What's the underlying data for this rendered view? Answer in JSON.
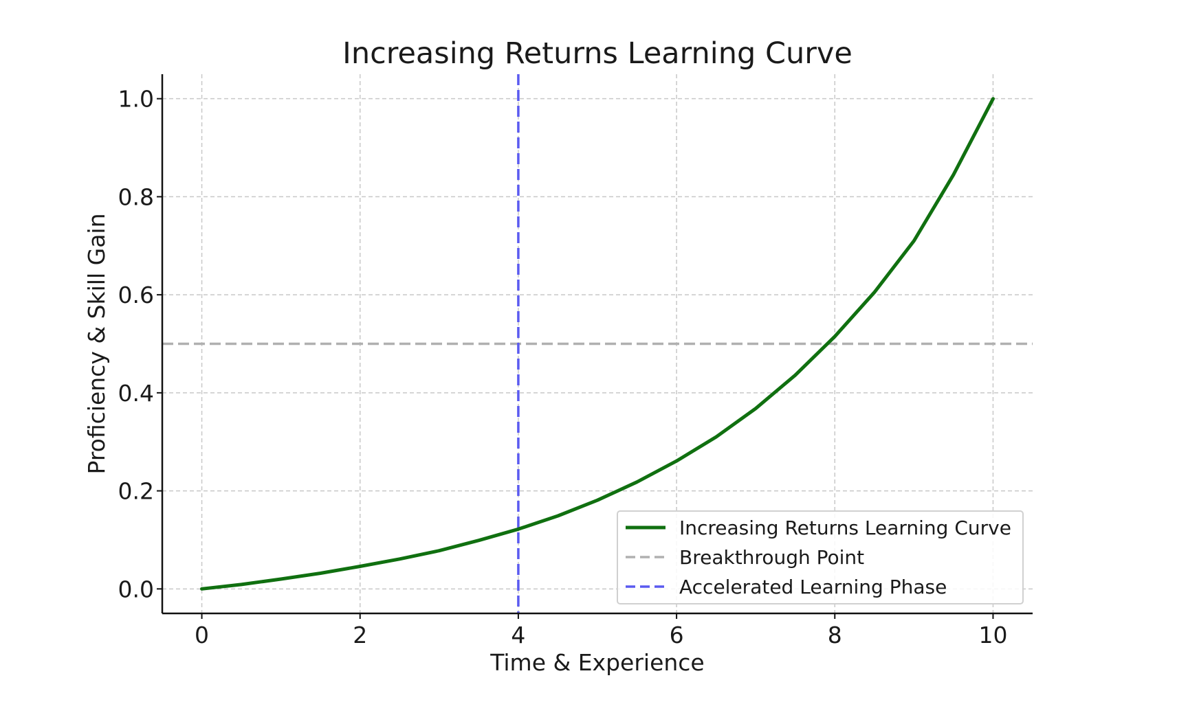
{
  "chart_data": {
    "type": "line",
    "title": "Increasing Returns Learning Curve",
    "xlabel": "Time & Experience",
    "ylabel": "Proficiency & Skill Gain",
    "xlim": [
      -0.5,
      10.5
    ],
    "ylim": [
      -0.05,
      1.05
    ],
    "x_ticks": [
      0,
      2,
      4,
      6,
      8,
      10
    ],
    "x_tick_labels": [
      "0",
      "2",
      "4",
      "6",
      "8",
      "10"
    ],
    "y_ticks": [
      0.0,
      0.2,
      0.4,
      0.6,
      0.8,
      1.0
    ],
    "y_tick_labels": [
      "0.0",
      "0.2",
      "0.4",
      "0.6",
      "0.8",
      "1.0"
    ],
    "grid": true,
    "legend_position": "lower-right",
    "series": [
      {
        "name": "Increasing Returns Learning Curve",
        "color": "#107010",
        "style": "solid",
        "x": [
          0,
          0.5,
          1,
          1.5,
          2,
          2.5,
          3,
          3.5,
          4,
          4.5,
          5,
          5.5,
          6,
          6.5,
          7,
          7.5,
          8,
          8.5,
          9,
          9.5,
          10
        ],
        "y": [
          0.0,
          0.009,
          0.02,
          0.032,
          0.046,
          0.061,
          0.078,
          0.099,
          0.122,
          0.149,
          0.181,
          0.218,
          0.261,
          0.31,
          0.368,
          0.436,
          0.515,
          0.605,
          0.71,
          0.845,
          1.0
        ]
      },
      {
        "name": "Breakthrough Point",
        "color": "#b0b0b0",
        "style": "dashed",
        "orientation": "horizontal",
        "y": 0.5
      },
      {
        "name": "Accelerated Learning Phase",
        "color": "#5a5af0",
        "style": "dashed",
        "orientation": "vertical",
        "x": 4
      }
    ]
  }
}
